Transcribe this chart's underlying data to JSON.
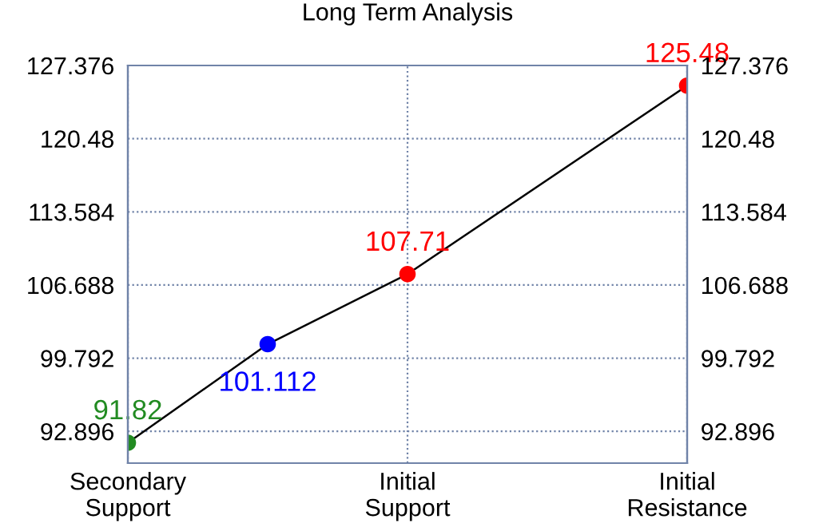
{
  "chart_data": {
    "type": "line",
    "title": "Long Term Analysis",
    "categories": [
      "Secondary\nSupport",
      null,
      "Initial\nSupport",
      null,
      "Initial\nResistance"
    ],
    "series": [
      {
        "color": "#000000",
        "colors": [
          "#228b22",
          "#0000ff",
          "#ff0000",
          null,
          "#ff0000"
        ],
        "values": [
          91.82,
          101.112,
          107.71,
          null,
          125.48
        ]
      }
    ],
    "marker": "circle",
    "line_style": "solid",
    "data_labels": true,
    "grid": true,
    "ylim": [
      89.9,
      127.376
    ],
    "yticks": [
      92.896,
      99.792,
      106.688,
      113.584,
      120.48,
      127.376
    ],
    "y2lim": [
      89.9,
      127.376
    ],
    "y2ticks": [
      92.896,
      99.792,
      106.688,
      113.584,
      120.48,
      127.376
    ]
  }
}
